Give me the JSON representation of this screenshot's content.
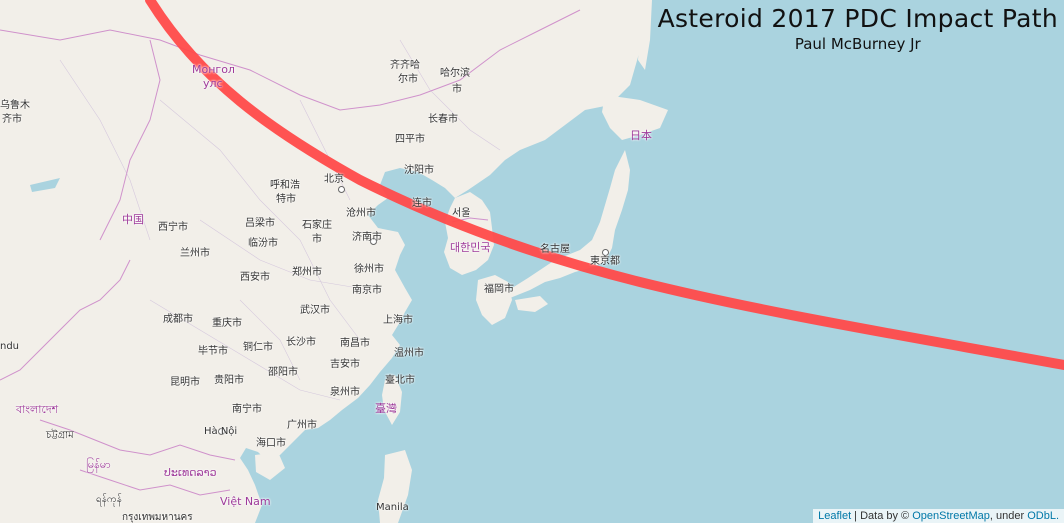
{
  "title": "Asteroid 2017 PDC Impact Path",
  "author": "Paul McBurney Jr",
  "attribution": {
    "leaflet": "Leaflet",
    "separator": " | Data by © ",
    "osm": "OpenStreetMap",
    "under": ", under ",
    "license": "ODbL."
  },
  "colors": {
    "water": "#aad3df",
    "land": "#f2efe9",
    "impact_path": "#ff4a4a",
    "border": "#c77ac4"
  },
  "labels": {
    "urumqi1": "乌鲁木",
    "urumqi2": "齐市",
    "mongolia1": "Монгол",
    "mongolia2": "улс",
    "qiqihar1": "齐齐哈",
    "qiqihar2": "尔市",
    "harbin1": "哈尔滨",
    "harbin2": "市",
    "changchun": "长春市",
    "siping": "四平市",
    "shenyang": "沈阳市",
    "japan": "日本",
    "hohhot1": "呼和浩",
    "hohhot2": "特市",
    "beijing": "北京",
    "dalian": "连市",
    "seoul": "서울",
    "china": "中国",
    "xining": "西宁市",
    "lanzhou": "兰州市",
    "luliang": "吕梁市",
    "linfen": "临汾市",
    "shijiazhuang1": "石家庄",
    "shijiazhuang2": "市",
    "cangzhou": "沧州市",
    "jinan": "济南市",
    "korea": "대한민국",
    "nagoya": "名古屋",
    "tokyo": "東京都",
    "fukuoka": "福岡市",
    "xian": "西安市",
    "zhengzhou": "郑州市",
    "xuzhou": "徐州市",
    "nanjing": "南京市",
    "chengdu": "成都市",
    "chongqing": "重庆市",
    "wuhan": "武汉市",
    "shanghai": "上海市",
    "bijie": "毕节市",
    "tongren": "铜仁市",
    "changsha": "长沙市",
    "nanchang": "南昌市",
    "wenzhou": "温州市",
    "ndu": "ndu",
    "kunming": "昆明市",
    "guiyang": "贵阳市",
    "shaoyang": "邵阳市",
    "jian": "吉安市",
    "taipei": "臺北市",
    "quanzhou": "泉州市",
    "bangladesh": "বাংলাদেশ",
    "taiwan": "臺灣",
    "nanning": "南宁市",
    "guangzhou": "广州市",
    "chittagong": "চট্টগ্রাম",
    "hanoi": "Hà Nội",
    "haikou": "海口市",
    "myanmar": "မြန်မာ",
    "laos": "ປະເທດລາວ",
    "vietnam": "Việt Nam",
    "yangon": "ရန်ကုန်",
    "bangkok": "กรุงเทพมหานคร",
    "manila": "Manila"
  }
}
